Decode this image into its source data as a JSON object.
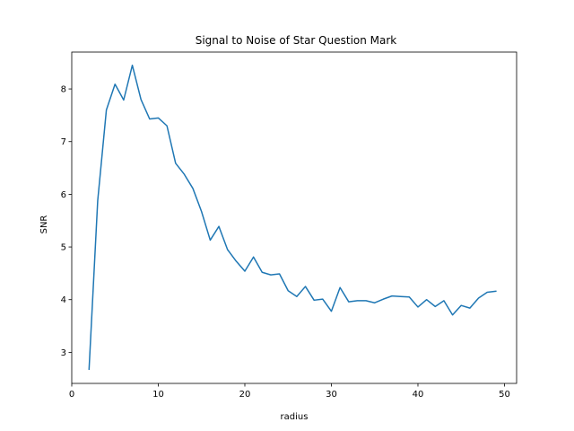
{
  "chart_data": {
    "type": "line",
    "title": "Signal to Noise of Star Question Mark",
    "xlabel": "radius",
    "ylabel": "SNR",
    "xlim": [
      0,
      51.4
    ],
    "ylim": [
      2.41,
      8.7
    ],
    "xticks": [
      0,
      10,
      20,
      30,
      40,
      50
    ],
    "yticks": [
      3,
      4,
      5,
      6,
      7,
      8
    ],
    "grid": false,
    "legend": "none",
    "series": [
      {
        "color": "#1f77b4",
        "x": [
          2,
          3,
          4,
          5,
          6,
          7,
          8,
          9,
          10,
          11,
          12,
          13,
          14,
          15,
          16,
          17,
          18,
          19,
          20,
          21,
          22,
          23,
          24,
          25,
          26,
          27,
          28,
          29,
          30,
          31,
          32,
          33,
          34,
          35,
          36,
          37,
          38,
          39,
          40,
          41,
          42,
          43,
          44,
          45,
          46,
          47,
          48,
          49
        ],
        "y": [
          2.68,
          5.88,
          7.6,
          8.09,
          7.79,
          8.45,
          7.8,
          7.43,
          7.45,
          7.3,
          6.59,
          6.38,
          6.11,
          5.67,
          5.13,
          5.39,
          4.95,
          4.73,
          4.54,
          4.81,
          4.52,
          4.47,
          4.49,
          4.17,
          4.06,
          4.25,
          3.99,
          4.01,
          3.78,
          4.23,
          3.96,
          3.98,
          3.98,
          3.94,
          4.01,
          4.07,
          4.06,
          4.05,
          3.86,
          4.0,
          3.87,
          3.98,
          3.71,
          3.89,
          3.84,
          4.03,
          4.14,
          4.16
        ]
      }
    ]
  }
}
